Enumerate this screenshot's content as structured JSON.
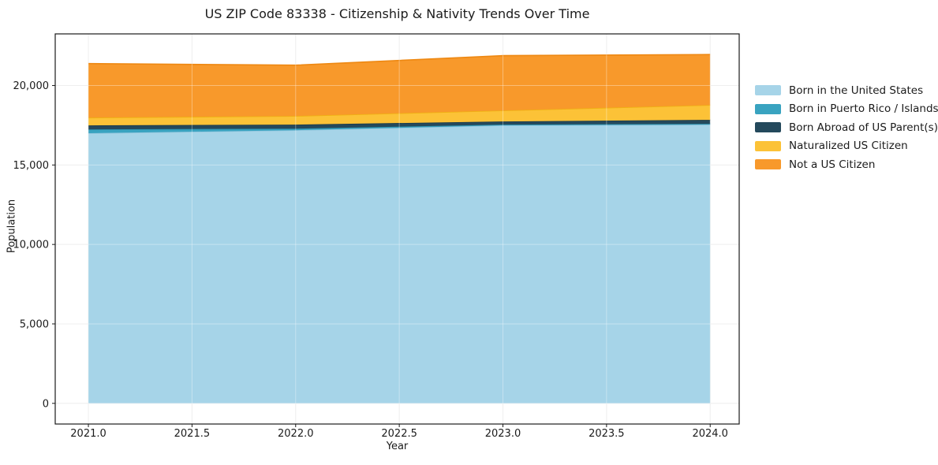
{
  "chart_data": {
    "type": "area",
    "stacked": true,
    "title": "US ZIP Code 83338 - Citizenship & Nativity Trends Over Time",
    "xlabel": "Year",
    "ylabel": "Population",
    "x": [
      2021,
      2022,
      2023,
      2024
    ],
    "series": [
      {
        "name": "Born in the United States",
        "color": "#a6d4e8",
        "edge": "#90c4dc",
        "values": [
          17000,
          17190,
          17490,
          17540
        ]
      },
      {
        "name": "Born in Puerto Rico / Islands",
        "color": "#39a3c0",
        "edge": "#2d92ad",
        "values": [
          240,
          100,
          50,
          50
        ]
      },
      {
        "name": "Born Abroad of US Parent(s)",
        "color": "#24495c",
        "edge": "#1b3a4a",
        "values": [
          250,
          250,
          200,
          250
        ]
      },
      {
        "name": "Naturalized US Citizen",
        "color": "#fcc237",
        "edge": "#efb112",
        "values": [
          490,
          540,
          690,
          930
        ]
      },
      {
        "name": "Not a US Citizen",
        "color": "#f8992b",
        "edge": "#ee8812",
        "values": [
          3400,
          3200,
          3450,
          3180
        ]
      }
    ],
    "xlim": [
      2020.84,
      2024.14
    ],
    "ylim": [
      -1300,
      23250
    ],
    "xticks": {
      "values": [
        2021.0,
        2021.5,
        2022.0,
        2022.5,
        2023.0,
        2023.5,
        2024.0
      ],
      "labels": [
        "2021.0",
        "2021.5",
        "2022.0",
        "2022.5",
        "2023.0",
        "2023.5",
        "2024.0"
      ]
    },
    "yticks": {
      "values": [
        0,
        5000,
        10000,
        15000,
        20000
      ],
      "labels": [
        "0",
        "5,000",
        "10,000",
        "15,000",
        "20,000"
      ]
    },
    "grid": true,
    "legend_position": "right-outside",
    "colors": {
      "spine": "#1a1a1a",
      "tick_text": "#1b1b1b",
      "grid_under": "#e7e7e7",
      "grid_over": "rgba(255,255,255,0.35)"
    }
  }
}
